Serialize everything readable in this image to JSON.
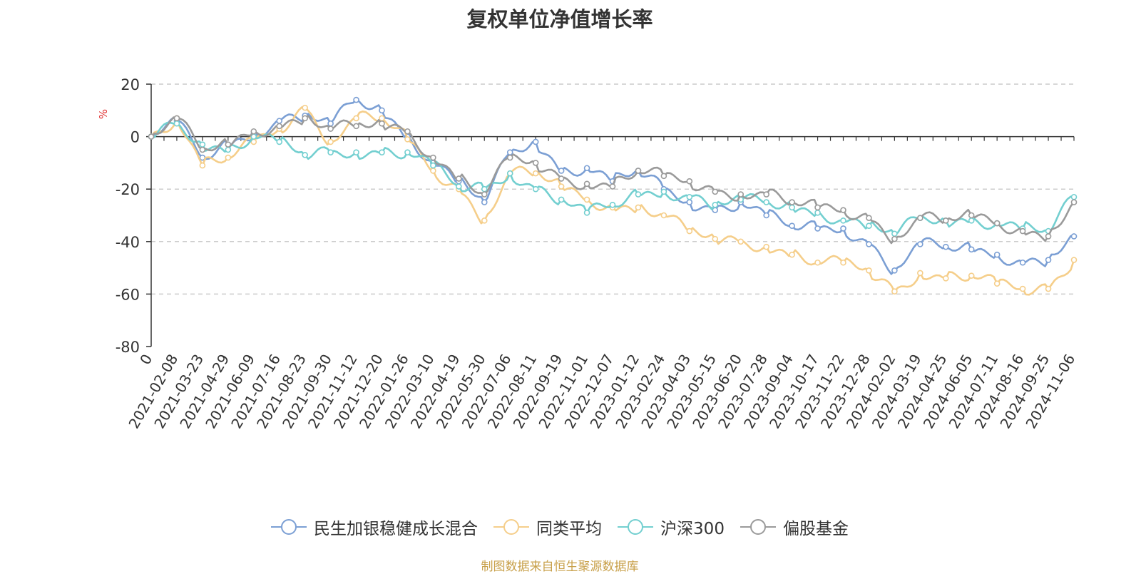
{
  "chart_data": {
    "type": "line",
    "title": "复权单位净值增长率",
    "ylabel": "%",
    "xlabel": "",
    "ylim": [
      -80,
      20
    ],
    "yticks": [
      20,
      0,
      -20,
      -40,
      -60,
      -80
    ],
    "grid": true,
    "legend_position": "bottom",
    "x_tick_labels": [
      "0",
      "2021-02-08",
      "2021-03-23",
      "2021-04-29",
      "2021-06-09",
      "2021-07-16",
      "2021-08-23",
      "2021-09-30",
      "2021-11-12",
      "2021-12-20",
      "2022-01-26",
      "2022-03-10",
      "2022-04-19",
      "2022-05-30",
      "2022-07-06",
      "2022-08-11",
      "2022-09-19",
      "2022-11-01",
      "2022-12-07",
      "2023-01-12",
      "2023-02-24",
      "2023-04-03",
      "2023-05-15",
      "2023-06-20",
      "2023-07-28",
      "2023-09-04",
      "2023-10-17",
      "2023-11-22",
      "2023-12-28",
      "2024-02-02",
      "2024-03-19",
      "2024-04-25",
      "2024-06-05",
      "2024-07-11",
      "2024-08-16",
      "2024-09-25",
      "2024-11-06"
    ],
    "x": [
      0,
      1,
      2,
      3,
      4,
      5,
      6,
      7,
      8,
      9,
      10,
      11,
      12,
      13,
      14,
      15,
      16,
      17,
      18,
      19,
      20,
      21,
      22,
      23,
      24,
      25,
      26,
      27,
      28,
      29,
      30,
      31,
      32,
      33,
      34,
      35,
      36
    ],
    "series": [
      {
        "name": "民生加银稳健成长混合",
        "color": "#7b9fd4",
        "values": [
          0,
          6,
          -8,
          -3,
          1,
          6,
          8,
          5,
          14,
          10,
          0,
          -10,
          -17,
          -25,
          -6,
          -2,
          -13,
          -12,
          -17,
          -13,
          -20,
          -25,
          -28,
          -25,
          -30,
          -34,
          -35,
          -35,
          -41,
          -51,
          -41,
          -42,
          -43,
          -45,
          -48,
          -47,
          -38
        ]
      },
      {
        "name": "同类平均",
        "color": "#f5ce8a",
        "values": [
          0,
          7,
          -11,
          -8,
          -2,
          3,
          11,
          -2,
          7,
          7,
          -1,
          -13,
          -20,
          -32,
          -14,
          -14,
          -19,
          -24,
          -27,
          -27,
          -30,
          -36,
          -39,
          -40,
          -42,
          -45,
          -48,
          -48,
          -51,
          -59,
          -52,
          -54,
          -53,
          -56,
          -58,
          -58,
          -47
        ]
      },
      {
        "name": "沪深300",
        "color": "#73cfd0",
        "values": [
          0,
          5,
          -3,
          -5,
          0,
          -2,
          -7,
          -6,
          -6,
          -6,
          -6,
          -11,
          -19,
          -20,
          -14,
          -20,
          -24,
          -29,
          -26,
          -22,
          -21,
          -23,
          -26,
          -24,
          -25,
          -27,
          -29,
          -32,
          -34,
          -37,
          -31,
          -32,
          -32,
          -33,
          -35,
          -36,
          -23
        ]
      },
      {
        "name": "偏股基金",
        "color": "#9a9a9a",
        "values": [
          0,
          7,
          -5,
          -3,
          2,
          4,
          7,
          3,
          4,
          5,
          2,
          -8,
          -16,
          -22,
          -8,
          -10,
          -16,
          -18,
          -19,
          -13,
          -15,
          -17,
          -21,
          -22,
          -22,
          -25,
          -27,
          -28,
          -31,
          -39,
          -31,
          -32,
          -30,
          -33,
          -36,
          -38,
          -25
        ]
      }
    ]
  },
  "source_note": "制图数据来自恒生聚源数据库"
}
